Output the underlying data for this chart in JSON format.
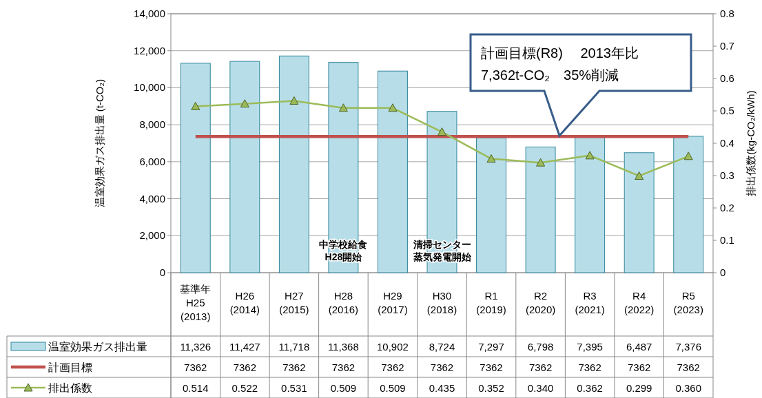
{
  "chart_data": {
    "type": "bar",
    "categories": [
      "基準年\nH25\n(2013)",
      "H26\n(2014)",
      "H27\n(2015)",
      "H28\n(2016)",
      "H29\n(2017)",
      "H30\n(2018)",
      "R1\n(2019)",
      "R2\n(2020)",
      "R3\n(2021)",
      "R4\n(2022)",
      "R5\n(2023)"
    ],
    "ylabel": "温室効果ガス排出量 (t-CO₂)",
    "y2label": "排出係数(kg-CO₂/kWh)",
    "ylim": [
      0,
      14000
    ],
    "yticks": [
      0,
      {
        "value": 2000,
        "label": "2,000"
      },
      {
        "value": 4000,
        "label": "4,000"
      },
      {
        "value": 6000,
        "label": "6,000"
      },
      {
        "value": 8000,
        "label": "8,000"
      },
      {
        "value": 10000,
        "label": "10,000"
      },
      {
        "value": 12000,
        "label": "12,000"
      },
      {
        "value": 14000,
        "label": "14,000"
      }
    ],
    "y2lim": [
      0,
      0.8
    ],
    "y2ticks": [
      0,
      0.1,
      0.2,
      0.3,
      0.4,
      0.5,
      0.6,
      0.7,
      0.8
    ],
    "grid": "y",
    "legend": "bottom",
    "series": [
      {
        "name": "温室効果ガス排出量",
        "color": "#b7dee8",
        "values": [
          11326,
          11427,
          11718,
          11368,
          10902,
          8724,
          7297,
          6798,
          7395,
          6487,
          7376
        ],
        "value_labels": [
          "11,326",
          "11,427",
          "11,718",
          "11,368",
          "10,902",
          "8,724",
          "7,297",
          "6,798",
          "7,395",
          "6,487",
          "7,376"
        ]
      },
      {
        "name": "計画目標",
        "type": "line",
        "color": "#c0504d",
        "values": [
          7362,
          7362,
          7362,
          7362,
          7362,
          7362,
          7362,
          7362,
          7362,
          7362,
          7362
        ],
        "value_labels": [
          "7362",
          "7362",
          "7362",
          "7362",
          "7362",
          "7362",
          "7362",
          "7362",
          "7362",
          "7362",
          "7362"
        ]
      },
      {
        "name": "排出係数",
        "type": "line",
        "axis": "y2",
        "marker": "triangle",
        "color": "#9bbb59",
        "values": [
          0.514,
          0.522,
          0.531,
          0.509,
          0.509,
          0.435,
          0.352,
          0.34,
          0.362,
          0.299,
          0.36
        ],
        "value_labels": [
          "0.514",
          "0.522",
          "0.531",
          "0.509",
          "0.509",
          "0.435",
          "0.352",
          "0.340",
          "0.362",
          "0.299",
          "0.360"
        ]
      }
    ],
    "annotations": [
      "計画目標(R8)　 2013年比\n7,362t-CO₂　35%削減",
      "中学校給食",
      "H28開始",
      "清掃センター",
      "蒸気発電開始"
    ]
  }
}
